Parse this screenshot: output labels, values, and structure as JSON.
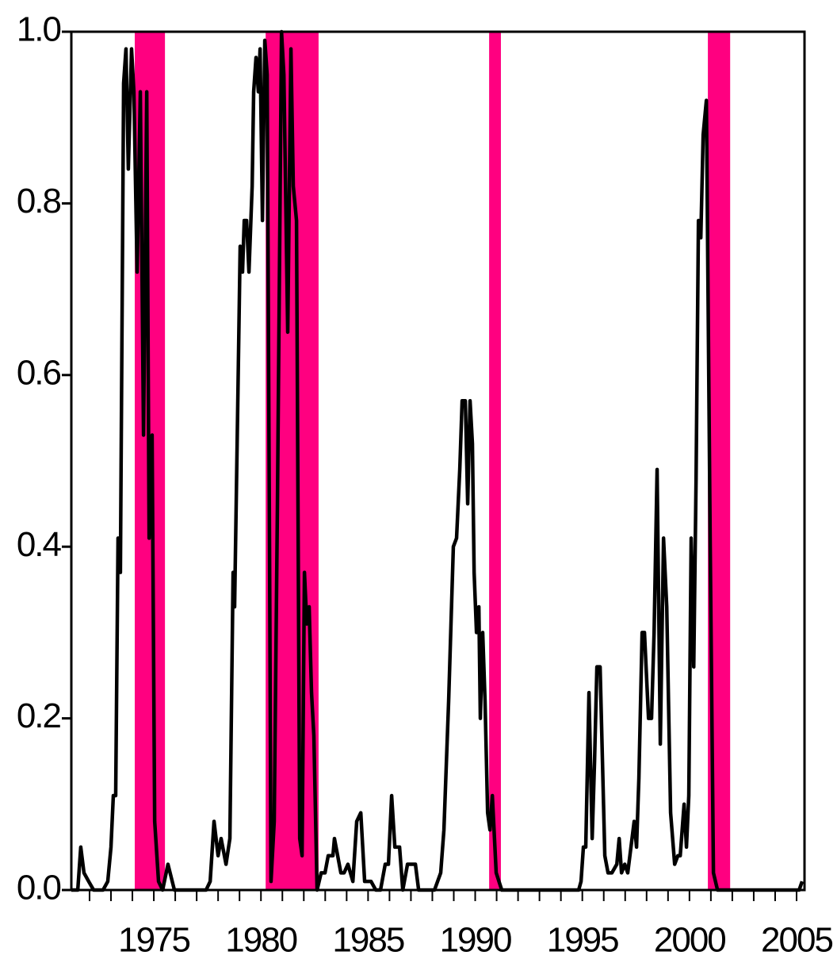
{
  "chart_data": {
    "type": "line",
    "xlim": [
      1971.15,
      2005.37
    ],
    "ylim": [
      0,
      1
    ],
    "yticks": [
      {
        "value": 0,
        "label": "0.0"
      },
      0.2,
      0.4,
      0.6,
      0.8,
      {
        "value": 1,
        "label": "1.0"
      }
    ],
    "xticks": [
      1975,
      1980,
      1985,
      1990,
      1995,
      2000,
      2005
    ],
    "xminor_ticks": [
      1972,
      1973,
      1974,
      1975,
      1976,
      1977,
      1978,
      1979,
      1980,
      1981,
      1982,
      1983,
      1984,
      1985,
      1986,
      1987,
      1988,
      1989,
      1990,
      1991,
      1992,
      1993,
      1994,
      1995,
      1996,
      1997,
      1998,
      1999,
      2000,
      2001,
      2002,
      2003,
      2004,
      2005
    ],
    "shaded_periods": [
      [
        1974.11,
        1975.52
      ],
      [
        1980.22,
        1982.69
      ],
      [
        1990.65,
        1991.2
      ],
      [
        2000.86,
        2001.9
      ]
    ],
    "shade_color": "#ff0080",
    "series": [
      {
        "color": "#000000",
        "x": [
          1971.15,
          1971.45,
          1971.59,
          1971.74,
          1971.96,
          1972.19,
          1972.63,
          1972.85,
          1973.0,
          1973.11,
          1973.22,
          1973.33,
          1973.44,
          1973.59,
          1973.7,
          1973.81,
          1973.96,
          1974.07,
          1974.22,
          1974.37,
          1974.52,
          1974.67,
          1974.78,
          1974.92,
          1975.04,
          1975.22,
          1975.41,
          1975.66,
          1975.96,
          1976.52,
          1977.44,
          1977.63,
          1977.81,
          1978.0,
          1978.14,
          1978.37,
          1978.55,
          1978.7,
          1978.77,
          1978.92,
          1979.03,
          1979.14,
          1979.22,
          1979.33,
          1979.44,
          1979.59,
          1979.66,
          1979.77,
          1979.88,
          1979.96,
          1980.07,
          1980.18,
          1980.29,
          1980.4,
          1980.47,
          1980.62,
          1980.77,
          1980.96,
          1981.07,
          1981.25,
          1981.4,
          1981.51,
          1981.66,
          1981.81,
          1981.92,
          1982.03,
          1982.14,
          1982.25,
          1982.36,
          1982.47,
          1982.62,
          1982.81,
          1982.99,
          1983.14,
          1983.36,
          1983.43,
          1983.58,
          1983.73,
          1983.88,
          1984.06,
          1984.29,
          1984.47,
          1984.66,
          1984.84,
          1985.03,
          1985.14,
          1985.36,
          1985.58,
          1985.8,
          1985.95,
          1986.1,
          1986.25,
          1986.47,
          1986.62,
          1986.84,
          1986.99,
          1987.21,
          1987.36,
          1987.65,
          1988.1,
          1988.39,
          1988.54,
          1988.76,
          1988.98,
          1989.13,
          1989.28,
          1989.39,
          1989.54,
          1989.65,
          1989.76,
          1989.87,
          1989.95,
          1990.06,
          1990.17,
          1990.24,
          1990.35,
          1990.46,
          1990.58,
          1990.69,
          1990.8,
          1990.98,
          1991.24,
          1993.72,
          1994.83,
          1994.94,
          1995.05,
          1995.16,
          1995.31,
          1995.46,
          1995.57,
          1995.68,
          1995.83,
          1995.94,
          1996.05,
          1996.2,
          1996.38,
          1996.61,
          1996.72,
          1996.83,
          1996.98,
          1997.12,
          1997.27,
          1997.42,
          1997.53,
          1997.64,
          1997.79,
          1997.9,
          1998.09,
          1998.23,
          1998.35,
          1998.49,
          1998.64,
          1998.79,
          1998.94,
          1999.12,
          1999.31,
          1999.46,
          1999.57,
          1999.75,
          1999.86,
          1999.97,
          2000.08,
          2000.2,
          2000.31,
          2000.42,
          2000.53,
          2000.64,
          2000.79,
          2000.97,
          2001.12,
          2001.31,
          2005.12,
          2005.26
        ],
        "values": [
          0,
          0,
          0.05,
          0.02,
          0.01,
          0,
          0,
          0.01,
          0.05,
          0.11,
          0.11,
          0.41,
          0.37,
          0.94,
          0.98,
          0.84,
          0.98,
          0.93,
          0.72,
          0.93,
          0.53,
          0.93,
          0.41,
          0.53,
          0.08,
          0.01,
          0,
          0.03,
          0,
          0,
          0,
          0.01,
          0.08,
          0.04,
          0.06,
          0.03,
          0.06,
          0.37,
          0.33,
          0.57,
          0.75,
          0.72,
          0.78,
          0.78,
          0.72,
          0.82,
          0.93,
          0.97,
          0.93,
          0.98,
          0.78,
          0.99,
          0.95,
          0.4,
          0.01,
          0.08,
          0.45,
          1.0,
          0.95,
          0.65,
          0.98,
          0.82,
          0.78,
          0.06,
          0.04,
          0.37,
          0.31,
          0.33,
          0.23,
          0.18,
          0,
          0.02,
          0.02,
          0.04,
          0.04,
          0.06,
          0.04,
          0.02,
          0.02,
          0.03,
          0.01,
          0.08,
          0.09,
          0.01,
          0.01,
          0.01,
          0,
          0,
          0.03,
          0.03,
          0.11,
          0.05,
          0.05,
          0,
          0.03,
          0.03,
          0.03,
          0,
          0,
          0,
          0.02,
          0.07,
          0.22,
          0.4,
          0.41,
          0.49,
          0.57,
          0.57,
          0.45,
          0.57,
          0.52,
          0.37,
          0.3,
          0.33,
          0.2,
          0.3,
          0.22,
          0.09,
          0.07,
          0.11,
          0.02,
          0,
          0,
          0,
          0.01,
          0.05,
          0.05,
          0.23,
          0.06,
          0.15,
          0.26,
          0.26,
          0.15,
          0.04,
          0.02,
          0.02,
          0.03,
          0.06,
          0.02,
          0.03,
          0.02,
          0.05,
          0.08,
          0.05,
          0.13,
          0.3,
          0.3,
          0.2,
          0.2,
          0.3,
          0.49,
          0.17,
          0.41,
          0.33,
          0.09,
          0.03,
          0.04,
          0.04,
          0.1,
          0.05,
          0.11,
          0.41,
          0.26,
          0.48,
          0.78,
          0.76,
          0.88,
          0.92,
          0.4,
          0.02,
          0,
          0,
          0.01
        ]
      }
    ]
  }
}
